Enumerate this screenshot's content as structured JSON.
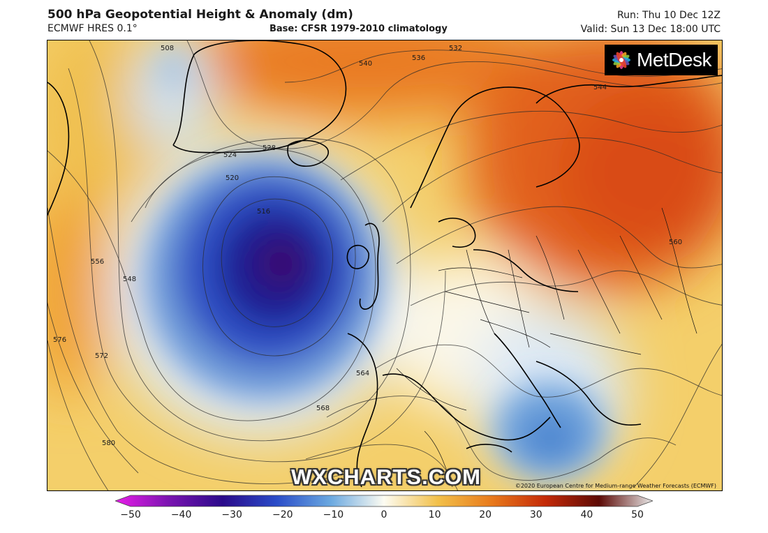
{
  "header": {
    "title": "500 hPa Geopotential Height & Anomaly (dm)",
    "model": "ECMWF HRES 0.1°",
    "base": "Base: CFSR 1979-2010 climatology",
    "run": "Run: Thu 10 Dec 12Z",
    "valid": "Valid: Sun 13 Dec 18:00 UTC"
  },
  "logo": {
    "text": "MetDesk",
    "icon": "metdesk-flower-icon"
  },
  "watermark": "WXCHARTS.COM",
  "copyright": "©2020 European Centre for Medium-range Weather Forecasts (ECMWF)",
  "contour_labels": [
    "508",
    "516",
    "520",
    "524",
    "528",
    "532",
    "536",
    "540",
    "544",
    "548",
    "556",
    "560",
    "564",
    "568",
    "572",
    "576",
    "580"
  ],
  "colorbar": {
    "min": -50,
    "max": 50,
    "tick_labels": [
      "−50",
      "−40",
      "−30",
      "−20",
      "−10",
      "0",
      "10",
      "20",
      "30",
      "40",
      "50"
    ],
    "stops": [
      {
        "value": -50,
        "color": "#e81ee8"
      },
      {
        "value": -40,
        "color": "#7a14b0"
      },
      {
        "value": -30,
        "color": "#2a0a8a"
      },
      {
        "value": -20,
        "color": "#2a4cc8"
      },
      {
        "value": -10,
        "color": "#6aa8e0"
      },
      {
        "value": 0,
        "color": "#fdfcf2"
      },
      {
        "value": 10,
        "color": "#f2c04a"
      },
      {
        "value": 20,
        "color": "#e87a1c"
      },
      {
        "value": 30,
        "color": "#c42a08"
      },
      {
        "value": 40,
        "color": "#5c0a06"
      },
      {
        "value": 50,
        "color": "#e8e8e8"
      }
    ]
  }
}
